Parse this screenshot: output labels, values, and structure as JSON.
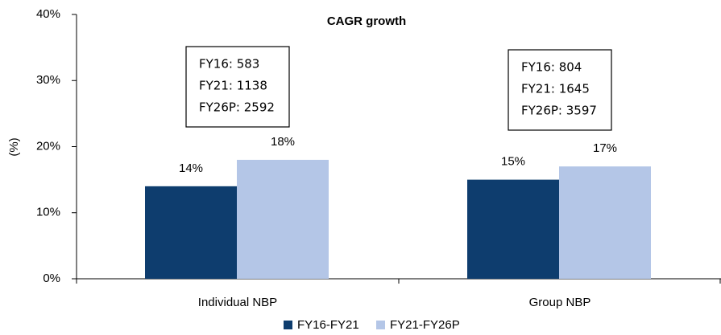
{
  "chart_data": {
    "type": "bar",
    "title": "CAGR growth",
    "y_label": "(%)",
    "categories": [
      "Individual NBP",
      "Group NBP"
    ],
    "series": [
      {
        "name": "FY16-FY21",
        "color": "#0e3d6e",
        "values": [
          14,
          15
        ],
        "value_labels": [
          "14%",
          "15%"
        ]
      },
      {
        "name": "FY21-FY26P",
        "color": "#b4c6e7",
        "values": [
          18,
          17
        ],
        "value_labels": [
          "18%",
          "17%"
        ]
      }
    ],
    "ylim": [
      0,
      40
    ],
    "yticks": [
      {
        "value": 0,
        "label": "0%"
      },
      {
        "value": 10,
        "label": "10%"
      },
      {
        "value": 20,
        "label": "20%"
      },
      {
        "value": 30,
        "label": "30%"
      },
      {
        "value": 40,
        "label": "40%"
      }
    ],
    "annotations": [
      [
        "FY16: 583",
        "FY21: 1138",
        "FY26P: 2592"
      ],
      [
        "FY16: 804",
        "FY21: 1645",
        "FY26P: 3597"
      ]
    ]
  }
}
